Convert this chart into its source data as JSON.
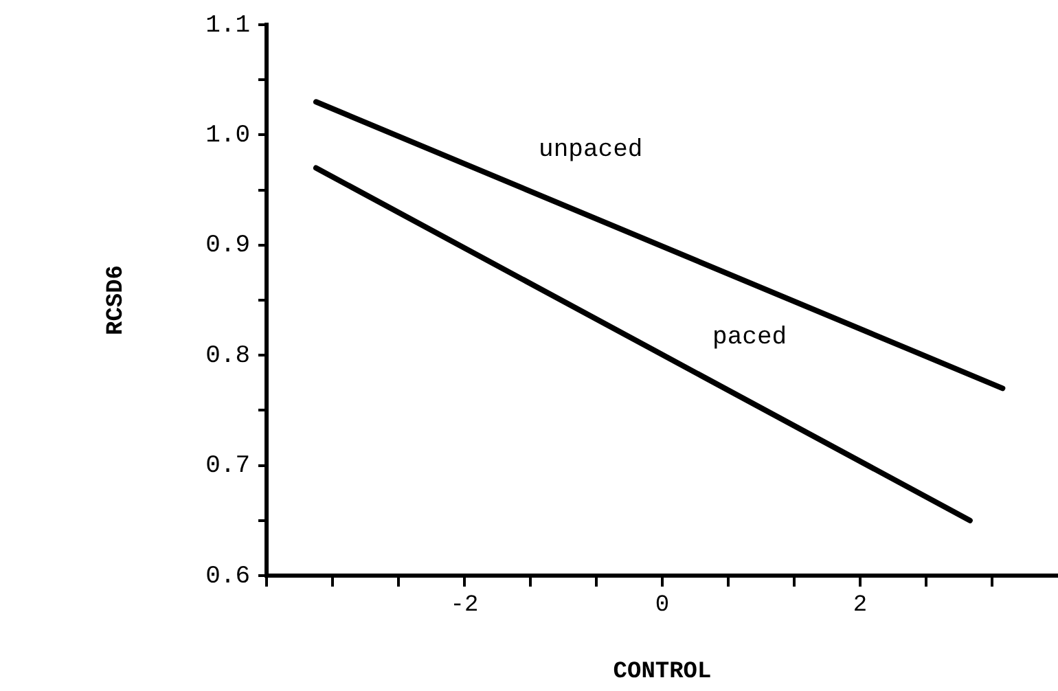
{
  "chart_data": {
    "type": "line",
    "xlabel": "CONTROL",
    "ylabel": "RCSD6",
    "xlim": [
      -4,
      4
    ],
    "xticks": [
      {
        "value": -4,
        "label": null
      },
      {
        "value": -3.333,
        "label": null
      },
      {
        "value": -2.667,
        "label": null
      },
      -2,
      {
        "value": -1.333,
        "label": null
      },
      {
        "value": -0.667,
        "label": null
      },
      0,
      {
        "value": 0.667,
        "label": null
      },
      {
        "value": 1.333,
        "label": null
      },
      2,
      {
        "value": 2.667,
        "label": null
      },
      {
        "value": 3.333,
        "label": null
      }
    ],
    "ylim": [
      0.6,
      1.1
    ],
    "yticks": [
      {
        "value": 0.6,
        "label": "0.6"
      },
      {
        "value": 0.65,
        "label": null
      },
      {
        "value": 0.7,
        "label": "0.7"
      },
      {
        "value": 0.75,
        "label": null
      },
      {
        "value": 0.8,
        "label": "0.8"
      },
      {
        "value": 0.85,
        "label": null
      },
      {
        "value": 0.9,
        "label": "0.9"
      },
      {
        "value": 0.95,
        "label": null
      },
      {
        "value": 1.0,
        "label": "1.0"
      },
      {
        "value": 1.05,
        "label": null
      },
      {
        "value": 1.1,
        "label": "1.1"
      }
    ],
    "grid": false,
    "legend": false,
    "marker": "none",
    "line_style": "solid",
    "series": [
      {
        "name": "unpaced",
        "color": "#000000",
        "x": [
          -3.5,
          3.44
        ],
        "values": [
          1.03,
          0.77
        ]
      },
      {
        "name": "paced",
        "color": "#000000",
        "x": [
          -3.5,
          3.11
        ],
        "values": [
          0.97,
          0.65
        ]
      }
    ]
  }
}
